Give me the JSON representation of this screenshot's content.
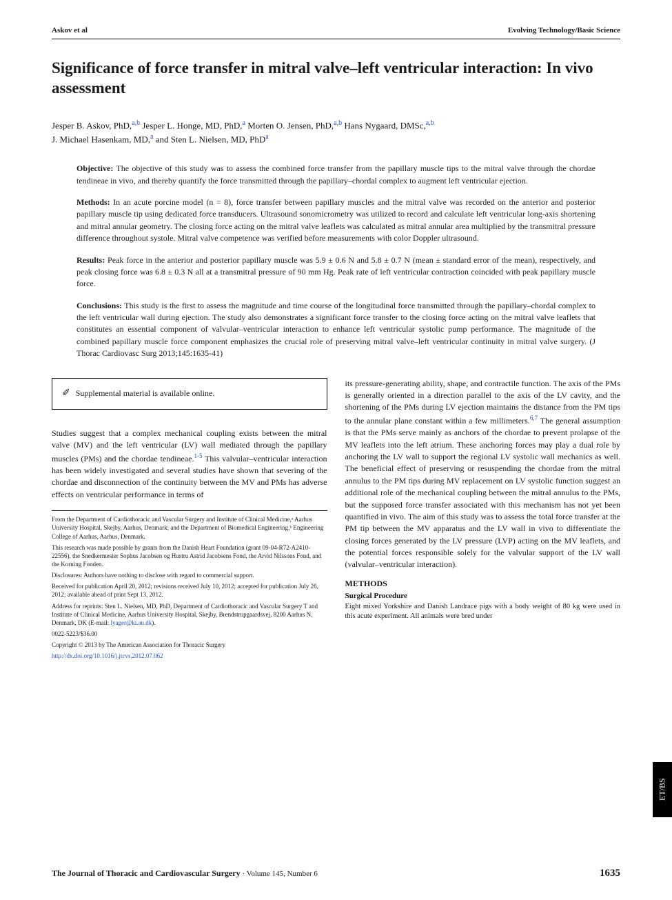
{
  "running_head": {
    "left": "Askov et al",
    "right": "Evolving Technology/Basic Science"
  },
  "title": "Significance of force transfer in mitral valve–left ventricular interaction: In vivo assessment",
  "authors": {
    "a1_name": "Jesper B. Askov, PhD,",
    "a1_aff": "a,b",
    "a2_name": "Jesper L. Honge, MD, PhD,",
    "a2_aff": "a",
    "a3_name": "Morten O. Jensen, PhD,",
    "a3_aff": "a,b",
    "a4_name": "Hans Nygaard, DMSc,",
    "a4_aff": "a,b",
    "a5_name": "J. Michael Hasenkam, MD,",
    "a5_aff": "a",
    "a6_name": "and Sten L. Nielsen, MD, PhD",
    "a6_aff": "a"
  },
  "abstract": {
    "objective_label": "Objective:",
    "objective": "The objective of this study was to assess the combined force transfer from the papillary muscle tips to the mitral valve through the chordae tendineae in vivo, and thereby quantify the force transmitted through the papillary–chordal complex to augment left ventricular ejection.",
    "methods_label": "Methods:",
    "methods": "In an acute porcine model (n = 8), force transfer between papillary muscles and the mitral valve was recorded on the anterior and posterior papillary muscle tip using dedicated force transducers. Ultrasound sonomicrometry was utilized to record and calculate left ventricular long-axis shortening and mitral annular geometry. The closing force acting on the mitral valve leaflets was calculated as mitral annular area multiplied by the transmitral pressure difference throughout systole. Mitral valve competence was verified before measurements with color Doppler ultrasound.",
    "results_label": "Results:",
    "results": "Peak force in the anterior and posterior papillary muscle was 5.9 ± 0.6 N and 5.8 ± 0.7 N (mean ± standard error of the mean), respectively, and peak closing force was 6.8 ± 0.3 N all at a transmitral pressure of 90 mm Hg. Peak rate of left ventricular contraction coincided with peak papillary muscle force.",
    "conclusions_label": "Conclusions:",
    "conclusions": "This study is the first to assess the magnitude and time course of the longitudinal force transmitted through the papillary–chordal complex to the left ventricular wall during ejection. The study also demonstrates a significant force transfer to the closing force acting on the mitral valve leaflets that constitutes an essential component of valvular–ventricular interaction to enhance left ventricular systolic pump performance. The magnitude of the combined papillary muscle force component emphasizes the crucial role of preserving mitral valve–left ventricular continuity in mitral valve surgery. (J Thorac Cardiovasc Surg 2013;145:1635-41)"
  },
  "supplemental": "Supplemental material is available online.",
  "body": {
    "left_para_a": "Studies suggest that a complex mechanical coupling exists between the mitral valve (MV) and the left ventricular (LV) wall mediated through the papillary muscles (PMs) and the chordae tendineae.",
    "left_ref1": "1-5",
    "left_para_b": " This valvular–ventricular interaction has been widely investigated and several studies have shown that severing of the chordae and disconnection of the continuity between the MV and PMs has adverse effects on ventricular performance in terms of",
    "right_para_a": "its pressure-generating ability, shape, and contractile function. The axis of the PMs is generally oriented in a direction parallel to the axis of the LV cavity, and the shortening of the PMs during LV ejection maintains the distance from the PM tips to the annular plane constant within a few millimeters.",
    "right_ref1": "6,7",
    "right_para_b": " The general assumption is that the PMs serve mainly as anchors of the chordae to prevent prolapse of the MV leaflets into the left atrium. These anchoring forces may play a dual role by anchoring the LV wall to support the regional LV systolic wall mechanics as well. The beneficial effect of preserving or resuspending the chordae from the mitral annulus to the PM tips during MV replacement on LV systolic function suggest an additional role of the mechanical coupling between the mitral annulus to the PMs, but the supposed force transfer associated with this mechanism has not yet been quantified in vivo. The aim of this study was to assess the total force transfer at the PM tip between the MV apparatus and the LV wall in vivo to differentiate the closing forces generated by the LV pressure (LVP) acting on the MV leaflets, and the potential forces responsible solely for the valvular support of the LV wall (valvular–ventricular interaction).",
    "methods_head": "METHODS",
    "surgical_head": "Surgical Procedure",
    "methods_body": "Eight mixed Yorkshire and Danish Landrace pigs with a body weight of 80 kg were used in this acute experiment. All animals were bred under"
  },
  "footnotes": {
    "f1": "From the Department of Cardiothoracic and Vascular Surgery and Institute of Clinical Medicine,ᵃ Aarhus University Hospital, Skejby, Aarhus, Denmark; and the Department of Biomedical Engineering,ᵇ Engineering College of Aarhus, Aarhus, Denmark.",
    "f2": "This research was made possible by grants from the Danish Heart Foundation (grant 09-04-R72-A2410-22556), the Snedkermester Sophus Jacobsen og Hustru Astrid Jacobsens Fond, the Arvid Nilssons Fond, and the Korning Fonden.",
    "f3": "Disclosures: Authors have nothing to disclose with regard to commercial support.",
    "f4": "Received for publication April 20, 2012; revisions received July 10, 2012; accepted for publication July 26, 2012; available ahead of print Sept 13, 2012.",
    "f5_a": "Address for reprints: Sten L. Nielsen, MD, PhD, Department of Cardiothoracic and Vascular Surgery T and Institute of Clinical Medicine, Aarhus University Hospital, Skejby, Brendstrupgaardsvej, 8200 Aarhus N, Denmark, DK (E-mail: ",
    "f5_link": "lyager@ki.au.dk",
    "f5_b": ").",
    "f6": "0022-5223/$36.00",
    "f7": "Copyright © 2013 by The American Association for Thoracic Surgery",
    "f8": "http://dx.doi.org/10.1016/j.jtcvs.2012.07.062"
  },
  "side_tab": "ET/BS",
  "footer": {
    "journal": "The Journal of Thoracic and Cardiovascular Surgery",
    "issue": "Volume 145, Number 6",
    "page": "1635"
  },
  "colors": {
    "link": "#2a52be",
    "text": "#1a1a1a",
    "bg": "#ffffff",
    "tab_bg": "#000000",
    "tab_fg": "#ffffff"
  }
}
